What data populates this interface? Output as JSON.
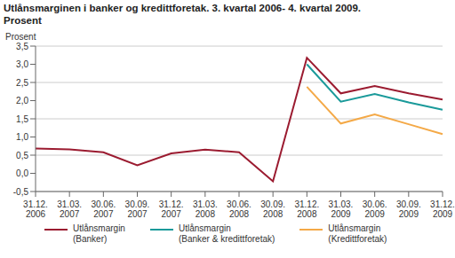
{
  "chart_data": {
    "type": "line",
    "title": "Utlånsmarginen i banker og kredittforetak. 3. kvartal 2006- 4. kvartal 2009.",
    "subtitle": "Prosent",
    "y_label": "Prosent",
    "categories": [
      "31.12. 2006",
      "31.03. 2007",
      "30.06. 2007",
      "30.09. 2007",
      "31.12. 2007",
      "31.03. 2008",
      "30.06. 2008",
      "30.09. 2008",
      "31.12. 2008",
      "31.03. 2009",
      "30.06. 2009",
      "30.09. 2009",
      "31.12. 2009"
    ],
    "series": [
      {
        "name": "Utlånsmargin (Banker)",
        "color": "#9b1b30",
        "values": [
          0.68,
          0.66,
          0.58,
          0.22,
          0.55,
          0.65,
          0.58,
          -0.22,
          3.18,
          2.2,
          2.4,
          2.2,
          2.03
        ]
      },
      {
        "name": "Utlånsmargin (Banker & kredittforetak)",
        "color": "#1a9a9a",
        "values": [
          null,
          null,
          null,
          null,
          null,
          null,
          null,
          null,
          3.0,
          1.97,
          2.18,
          1.95,
          1.75
        ]
      },
      {
        "name": "Utlånsmargin (Kredittforetak)",
        "color": "#f4a947",
        "values": [
          null,
          null,
          null,
          null,
          null,
          null,
          null,
          null,
          2.38,
          1.37,
          1.62,
          1.35,
          1.08
        ]
      }
    ],
    "ylim": [
      -0.5,
      3.5
    ],
    "yticks": [
      {
        "value": -0.5,
        "label": "-0,5"
      },
      {
        "value": 0,
        "label": "0,0"
      },
      {
        "value": 0.5,
        "label": "0,5"
      },
      {
        "value": 1,
        "label": "1,0"
      },
      {
        "value": 1.5,
        "label": "1,5"
      },
      {
        "value": 2,
        "label": "2,0"
      },
      {
        "value": 2.5,
        "label": "2,5"
      },
      {
        "value": 3,
        "label": "3,0"
      },
      {
        "value": 3.5,
        "label": "3,5"
      }
    ],
    "grid": true,
    "legend": "bottom"
  }
}
